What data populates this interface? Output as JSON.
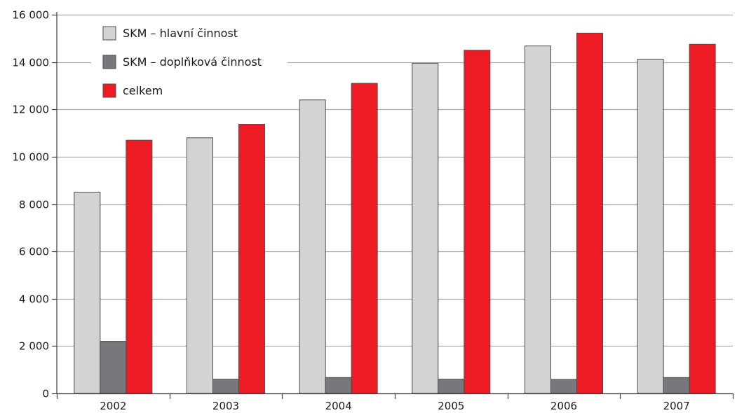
{
  "chart_data": {
    "type": "bar",
    "categories": [
      "2002",
      "2003",
      "2004",
      "2005",
      "2006",
      "2007"
    ],
    "series": [
      {
        "name": "SKM – hlavní činnost",
        "color": "#d1d3d4",
        "values": [
          8500,
          10800,
          12400,
          13950,
          14680,
          14120
        ]
      },
      {
        "name": "SKM – doplňková činnost",
        "color": "#77787b",
        "values": [
          2200,
          600,
          670,
          600,
          590,
          670
        ]
      },
      {
        "name": "celkem",
        "color": "#ed1c24",
        "values": [
          10700,
          11370,
          13100,
          14500,
          15220,
          14750
        ]
      }
    ],
    "ylim": [
      0,
      16000
    ],
    "yticks": [
      0,
      2000,
      4000,
      6000,
      8000,
      10000,
      12000,
      14000,
      16000
    ],
    "ytick_labels": [
      "0",
      "2 000",
      "4 000",
      "6 000",
      "8 000",
      "10 000",
      "12 000",
      "14 000",
      "16 000"
    ],
    "grid": true,
    "legend_position": "top-left",
    "title": "",
    "xlabel": "",
    "ylabel": ""
  }
}
